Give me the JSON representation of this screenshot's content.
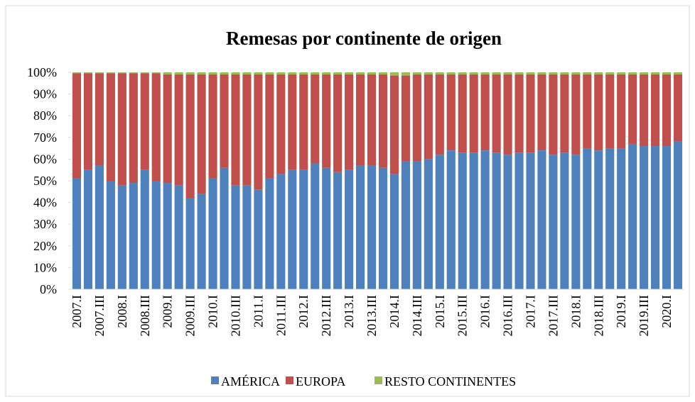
{
  "chart_data": {
    "type": "stacked_bar",
    "title": "Remesas por continente de origen",
    "categories": [
      "2007.I",
      null,
      "2007.III",
      null,
      "2008.I",
      null,
      "2008.III",
      null,
      "2009.I",
      null,
      "2009.III",
      null,
      "2010.I",
      null,
      "2010.III",
      null,
      "2011.I",
      null,
      "2011.III",
      null,
      "2012.I",
      null,
      "2012.III",
      null,
      "2013.I",
      null,
      "2013.III",
      null,
      "2014.I",
      null,
      "2014.III",
      null,
      "2015.I",
      null,
      "2015.III",
      null,
      "2016.I",
      null,
      "2016.III",
      null,
      "2017.I",
      null,
      "2017.III",
      null,
      "2018.I",
      null,
      "2018.III",
      null,
      "2019.I",
      null,
      "2019.III",
      null,
      "2020.I",
      null
    ],
    "series": [
      {
        "name": "AMÉRICA",
        "color": "#4f81bd",
        "values": [
          51,
          55,
          57,
          50,
          48,
          49,
          55,
          50,
          49,
          48,
          42,
          44,
          51,
          56,
          48,
          48,
          46,
          51,
          53,
          55,
          55,
          58,
          56,
          54,
          55,
          57,
          57,
          56,
          53,
          59,
          59,
          60,
          62,
          64,
          63,
          63,
          64,
          63,
          62,
          63,
          63,
          64,
          62,
          63,
          62,
          65,
          64,
          65,
          65,
          67,
          66,
          66,
          66,
          68
        ]
      },
      {
        "name": "EUROPA",
        "color": "#c0504d",
        "values": [
          48.5,
          44.5,
          42.5,
          49.5,
          51.5,
          50.5,
          44.5,
          49.5,
          50,
          51,
          57,
          55,
          48,
          43,
          51,
          51,
          53,
          48,
          46,
          44,
          44,
          41,
          43,
          45,
          44,
          42,
          42,
          43,
          45.5,
          39.5,
          40,
          39,
          37,
          35,
          36,
          36,
          35,
          36,
          37,
          36,
          36,
          35,
          37,
          36,
          37,
          34,
          35,
          34,
          34,
          32,
          33,
          33,
          33,
          31
        ]
      },
      {
        "name": "RESTO CONTINENTES",
        "color": "#9bbb59",
        "values": [
          0.5,
          0.5,
          0.5,
          0.5,
          0.5,
          0.5,
          0.5,
          0.5,
          1,
          1,
          1,
          1,
          1,
          1,
          1,
          1,
          1,
          1,
          1,
          1,
          1,
          1,
          1,
          1,
          1,
          1,
          1,
          1,
          1.5,
          1.5,
          1,
          1,
          1,
          1,
          1,
          1,
          1,
          1,
          1,
          1,
          1,
          1,
          1,
          1,
          1,
          1,
          1,
          1,
          1,
          1,
          1,
          1,
          1,
          1
        ]
      }
    ],
    "ylim": [
      0,
      100
    ],
    "yticks": [
      {
        "value": 0,
        "label": "0%"
      },
      {
        "value": 10,
        "label": "10%"
      },
      {
        "value": 20,
        "label": "20%"
      },
      {
        "value": 30,
        "label": "30%"
      },
      {
        "value": 40,
        "label": "40%"
      },
      {
        "value": 50,
        "label": "50%"
      },
      {
        "value": 60,
        "label": "60%"
      },
      {
        "value": 70,
        "label": "70%"
      },
      {
        "value": 80,
        "label": "80%"
      },
      {
        "value": 90,
        "label": "90%"
      },
      {
        "value": 100,
        "label": "100%"
      }
    ],
    "legend": "bottom"
  }
}
